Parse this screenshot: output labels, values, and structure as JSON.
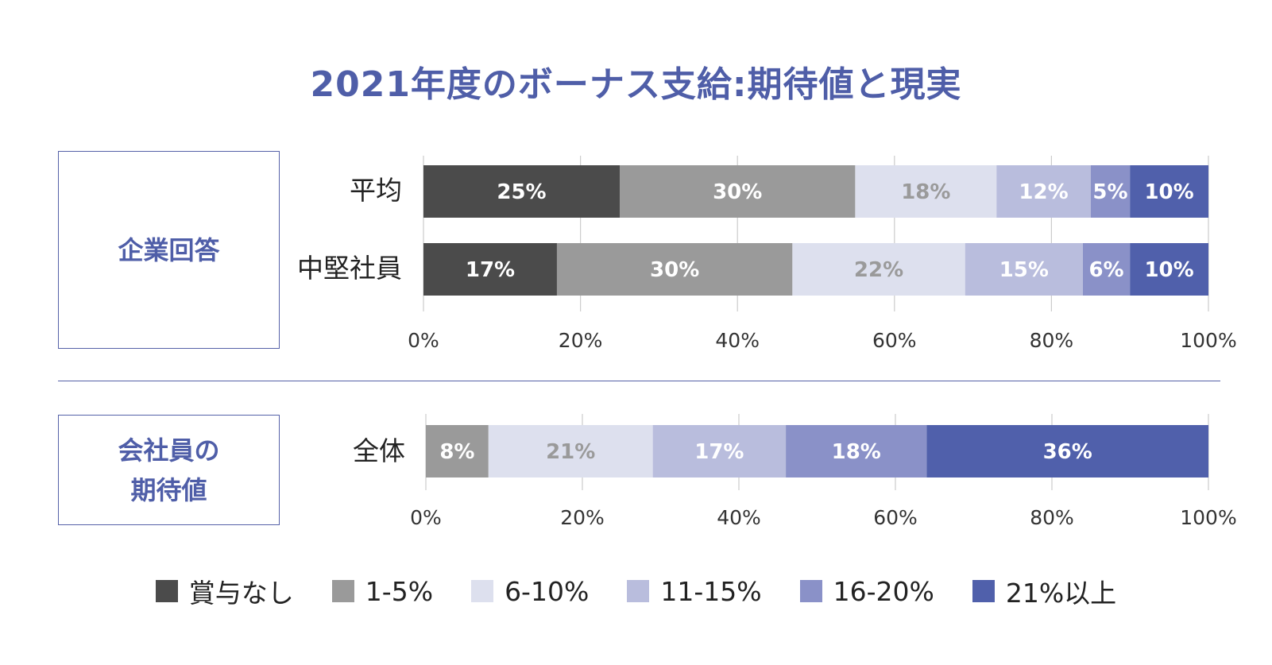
{
  "title": "2021年度のボーナス支給:期待値と現実",
  "sections": {
    "company_response": "企業回答",
    "employee_expectation": [
      "会社員の",
      "期待値"
    ]
  },
  "colors": [
    "#4b4b4b",
    "#9a9a9a",
    "#dde0ee",
    "#b9bddd",
    "#8a91c8",
    "#5060ab"
  ],
  "legend": [
    "賞与なし",
    "1-5%",
    "6-10%",
    "11-15%",
    "16-20%",
    "21%以上"
  ],
  "chart_data": [
    {
      "type": "bar",
      "orientation": "horizontal",
      "stacked": true,
      "group": "企業回答",
      "categories": [
        "平均",
        "中堅社員"
      ],
      "series": [
        {
          "name": "賞与なし",
          "values": [
            25,
            17
          ],
          "labels": [
            "25%",
            "17%"
          ]
        },
        {
          "name": "1-5%",
          "values": [
            30,
            30
          ],
          "labels": [
            "30%",
            "30%"
          ]
        },
        {
          "name": "6-10%",
          "values": [
            18,
            22
          ],
          "labels": [
            "18%",
            "22%"
          ]
        },
        {
          "name": "11-15%",
          "values": [
            12,
            15
          ],
          "labels": [
            "12%",
            "15%"
          ]
        },
        {
          "name": "16-20%",
          "values": [
            5,
            6
          ],
          "labels": [
            "5%",
            "6%"
          ]
        },
        {
          "name": "21%以上",
          "values": [
            10,
            10
          ],
          "labels": [
            "10%",
            "10%"
          ]
        }
      ],
      "xlim": [
        0,
        100
      ],
      "xticks": [
        "0%",
        "20%",
        "40%",
        "60%",
        "80%",
        "100%"
      ]
    },
    {
      "type": "bar",
      "orientation": "horizontal",
      "stacked": true,
      "group": "会社員の期待値",
      "categories": [
        "全体"
      ],
      "series": [
        {
          "name": "1-5%",
          "values": [
            8
          ],
          "labels": [
            "8%"
          ]
        },
        {
          "name": "6-10%",
          "values": [
            21
          ],
          "labels": [
            "21%"
          ]
        },
        {
          "name": "11-15%",
          "values": [
            17
          ],
          "labels": [
            "17%"
          ]
        },
        {
          "name": "16-20%",
          "values": [
            18
          ],
          "labels": [
            "18%"
          ]
        },
        {
          "name": "21%以上",
          "values": [
            36
          ],
          "labels": [
            "36%"
          ]
        }
      ],
      "xlim": [
        0,
        100
      ],
      "xticks": [
        "0%",
        "20%",
        "40%",
        "60%",
        "80%",
        "100%"
      ]
    }
  ]
}
